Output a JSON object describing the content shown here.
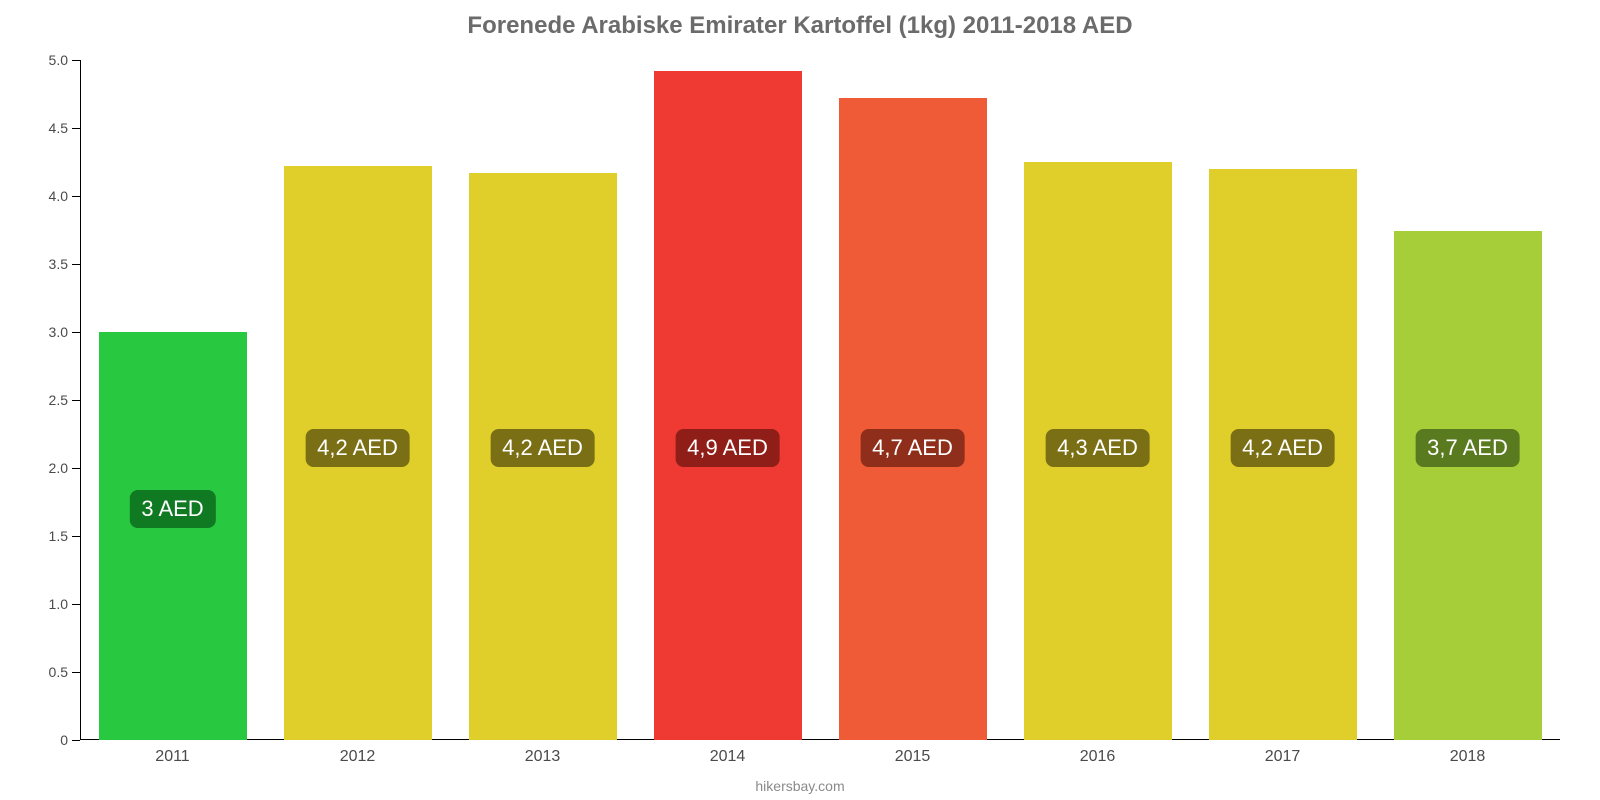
{
  "chart": {
    "type": "bar",
    "title": "Forenede Arabiske Emirater Kartoffel (1kg) 2011-2018 AED",
    "title_fontsize": 24,
    "title_color": "#6b6b6b",
    "background_color": "#ffffff",
    "source_text": "hikersbay.com",
    "source_fontsize": 14,
    "source_color": "#8a8a8a",
    "xaxis": {
      "categories": [
        "2011",
        "2012",
        "2013",
        "2014",
        "2015",
        "2016",
        "2017",
        "2018"
      ],
      "label_fontsize": 16,
      "label_color": "#4a4a4a"
    },
    "yaxis": {
      "min": 0,
      "max": 5.0,
      "ticks": [
        0,
        0.5,
        1.0,
        1.5,
        2.0,
        2.5,
        3.0,
        3.5,
        4.0,
        4.5,
        5.0
      ],
      "tick_labels": [
        "0",
        "0.5",
        "1.0",
        "1.5",
        "2.0",
        "2.5",
        "3.0",
        "3.5",
        "4.0",
        "4.5",
        "5.0"
      ],
      "label_fontsize": 14,
      "label_color": "#4a4a4a",
      "axis_line_color": "#000000"
    },
    "bars": {
      "width_frac": 0.8,
      "values": [
        3.0,
        4.22,
        4.17,
        4.92,
        4.72,
        4.25,
        4.2,
        3.74
      ],
      "colors": [
        "#28c840",
        "#e0cf2a",
        "#e0cf2a",
        "#ee3a32",
        "#ef5a37",
        "#e0cf2a",
        "#e0cf2a",
        "#a6ce39"
      ],
      "badge_labels": [
        "3 AED",
        "4,2 AED",
        "4,2 AED",
        "4,9 AED",
        "4,7 AED",
        "4,3 AED",
        "4,2 AED",
        "3,7 AED"
      ],
      "badge_bg_colors": [
        "#0f7a22",
        "#7a6f14",
        "#7a6f14",
        "#8f1d18",
        "#8f2f1b",
        "#7a6f14",
        "#7a6f14",
        "#5a7a20"
      ],
      "badge_fontsize": 22,
      "badge_text_color": "#ffffff",
      "badge_band_center_value": 2.15,
      "badge_band_low_center_value": 1.7
    }
  }
}
